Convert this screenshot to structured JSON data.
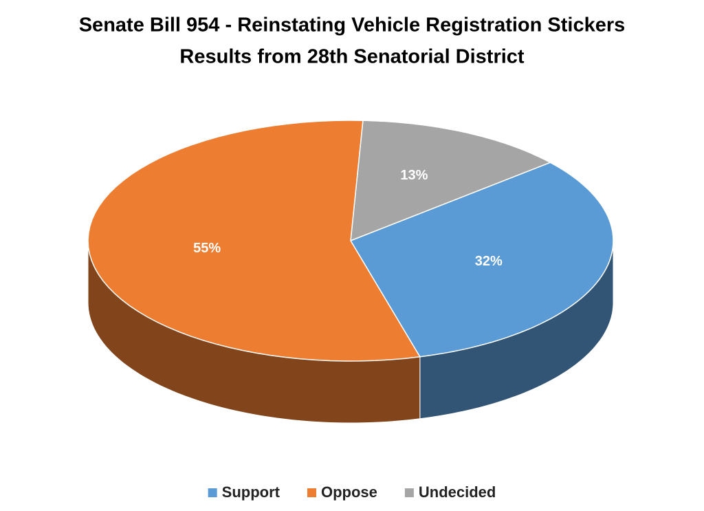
{
  "chart_data": {
    "type": "pie",
    "title": "Senate Bill 954 - Reinstating Vehicle Registration Stickers",
    "subtitle": "Results from 28th Senatorial District",
    "categories": [
      "Support",
      "Oppose",
      "Undecided"
    ],
    "values": [
      32,
      55,
      13
    ],
    "value_labels": [
      "32%",
      "55%",
      "13%"
    ],
    "colors": [
      "#5b9bd5",
      "#ed7d31",
      "#a5a5a5"
    ],
    "legend": "bottom"
  }
}
